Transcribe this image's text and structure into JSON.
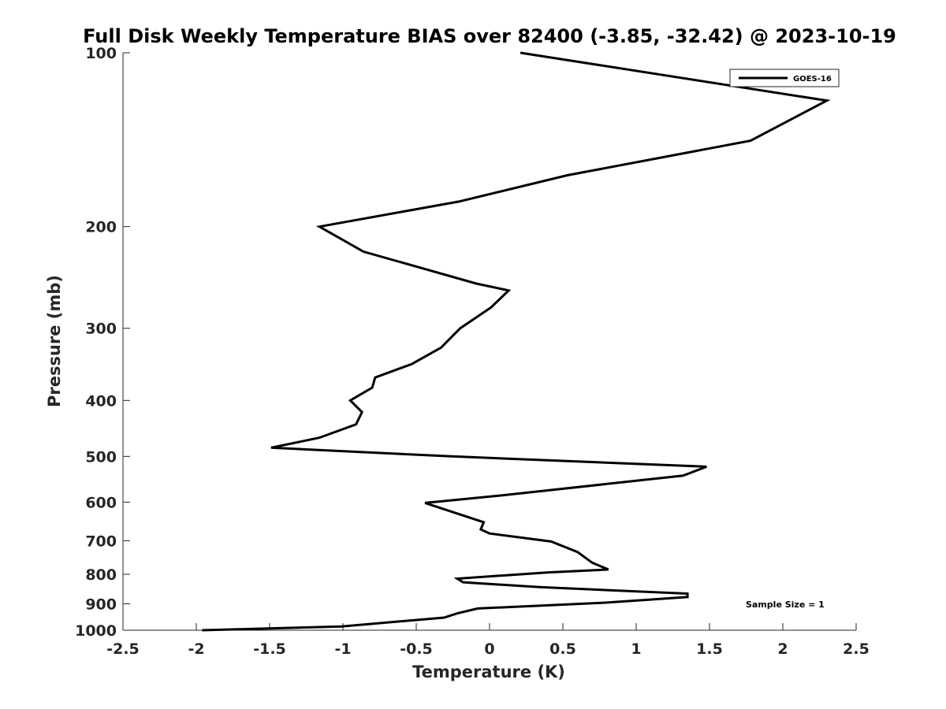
{
  "chart_data": {
    "type": "line",
    "title": "Full Disk Weekly Temperature BIAS over 82400 (-3.85, -32.42) @ 2023-10-19",
    "xlabel": "Temperature (K)",
    "ylabel": "Pressure (mb)",
    "xlim": [
      -2.5,
      2.5
    ],
    "ylim": [
      100,
      1000
    ],
    "y_scale": "log",
    "y_reversed": true,
    "grid": false,
    "legend_position": "top-right",
    "x_ticks": [
      "-2.5",
      "-2",
      "-1.5",
      "-1",
      "-0.5",
      "0",
      "0.5",
      "1",
      "1.5",
      "2",
      "2.5"
    ],
    "y_ticks": [
      "100",
      "200",
      "300",
      "400",
      "500",
      "600",
      "700",
      "800",
      "900",
      "1000"
    ],
    "annotation": "Sample Size = 1",
    "series": [
      {
        "name": "GOES-16",
        "color": "#000000",
        "points": [
          {
            "x": 0.21,
            "y": 100
          },
          {
            "x": 2.3,
            "y": 121
          },
          {
            "x": 1.78,
            "y": 142
          },
          {
            "x": 0.53,
            "y": 163
          },
          {
            "x": -0.21,
            "y": 181
          },
          {
            "x": -1.16,
            "y": 200
          },
          {
            "x": -0.86,
            "y": 221
          },
          {
            "x": -0.09,
            "y": 251
          },
          {
            "x": 0.13,
            "y": 258
          },
          {
            "x": 0.01,
            "y": 276
          },
          {
            "x": -0.2,
            "y": 300
          },
          {
            "x": -0.33,
            "y": 324
          },
          {
            "x": -0.53,
            "y": 346
          },
          {
            "x": -0.78,
            "y": 365
          },
          {
            "x": -0.8,
            "y": 380
          },
          {
            "x": -0.95,
            "y": 400
          },
          {
            "x": -0.87,
            "y": 419
          },
          {
            "x": -0.91,
            "y": 440
          },
          {
            "x": -1.16,
            "y": 464
          },
          {
            "x": -1.49,
            "y": 483
          },
          {
            "x": -0.26,
            "y": 500
          },
          {
            "x": 1.48,
            "y": 521
          },
          {
            "x": 1.32,
            "y": 540
          },
          {
            "x": 0.06,
            "y": 585
          },
          {
            "x": -0.44,
            "y": 602
          },
          {
            "x": -0.04,
            "y": 650
          },
          {
            "x": -0.06,
            "y": 669
          },
          {
            "x": 0.0,
            "y": 680
          },
          {
            "x": 0.42,
            "y": 702
          },
          {
            "x": 0.6,
            "y": 732
          },
          {
            "x": 0.7,
            "y": 764
          },
          {
            "x": 0.81,
            "y": 785
          },
          {
            "x": 0.4,
            "y": 794
          },
          {
            "x": -0.22,
            "y": 814
          },
          {
            "x": -0.18,
            "y": 826
          },
          {
            "x": 0.34,
            "y": 842
          },
          {
            "x": 1.35,
            "y": 864
          },
          {
            "x": 1.35,
            "y": 876
          },
          {
            "x": 0.79,
            "y": 896
          },
          {
            "x": -0.08,
            "y": 917
          },
          {
            "x": -0.22,
            "y": 935
          },
          {
            "x": -0.31,
            "y": 951
          },
          {
            "x": -1.01,
            "y": 985
          },
          {
            "x": -1.96,
            "y": 1000
          }
        ]
      }
    ]
  }
}
